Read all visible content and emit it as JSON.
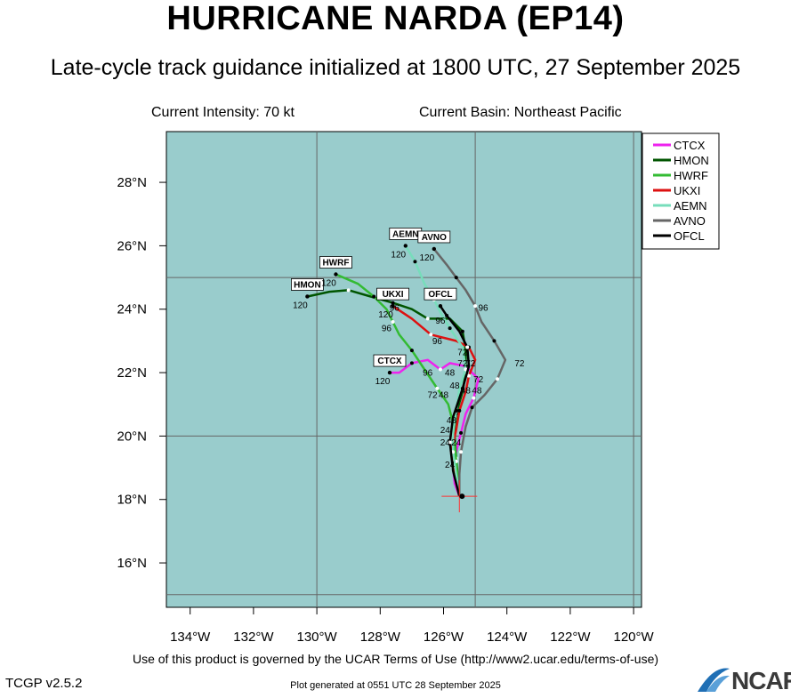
{
  "title": "HURRICANE NARDA (EP14)",
  "subtitle": "Late-cycle track guidance initialized at 1800 UTC, 27 September 2025",
  "current_intensity": "Current Intensity: 70 kt",
  "current_basin": "Current Basin: Northeast Pacific",
  "footer_terms": "Use of this product is governed by the UCAR Terms of Use (http://www2.ucar.edu/terms-of-use)",
  "footer_generated": "Plot generated at 0551 UTC   28 September 2025",
  "version": "TCGP v2.5.2",
  "logo_text": "NCAR",
  "colors": {
    "ocean": "#99cccc",
    "grid": "#666666",
    "storm_marker": "#ff3333"
  },
  "chart_data": {
    "type": "line",
    "lon_ticks": [
      "134°W",
      "132°W",
      "130°W",
      "128°W",
      "126°W",
      "124°W",
      "122°W",
      "120°W"
    ],
    "lat_ticks": [
      "16°N",
      "18°N",
      "20°N",
      "22°N",
      "24°N",
      "26°N",
      "28°N"
    ],
    "lon_range": [
      -134.75,
      -119.75
    ],
    "lat_range": [
      14.6,
      29.6
    ],
    "storm_position": [
      -125.5,
      18.1
    ],
    "legend_placement": "top-right",
    "series": [
      {
        "name": "CTCX",
        "color": "#ee22ee",
        "width": 2.5,
        "end_label": "CTCX",
        "end_number": "120",
        "points": [
          [
            -125.5,
            18.1
          ],
          [
            -125.65,
            18.5
          ],
          [
            -125.7,
            19.0
          ],
          [
            -125.6,
            19.5
          ],
          [
            -125.45,
            20.1
          ],
          [
            -125.3,
            20.7
          ],
          [
            -125.05,
            21.2
          ],
          [
            -124.9,
            21.8
          ],
          [
            -125.3,
            22.2
          ],
          [
            -125.8,
            22.3
          ],
          [
            -126.1,
            22.1
          ],
          [
            -126.5,
            22.4
          ],
          [
            -127.0,
            22.3
          ],
          [
            -127.4,
            22.0
          ],
          [
            -127.7,
            22.0
          ]
        ],
        "labels": [
          {
            "t": "96",
            "lon": -126.5,
            "lat": 21.9
          },
          {
            "t": "72",
            "lon": -124.9,
            "lat": 21.7
          }
        ]
      },
      {
        "name": "HMON",
        "color": "#005500",
        "width": 2.5,
        "end_label": "HMON",
        "end_number": "120",
        "points": [
          [
            -125.5,
            18.1
          ],
          [
            -125.55,
            18.7
          ],
          [
            -125.6,
            19.3
          ],
          [
            -125.65,
            20.0
          ],
          [
            -125.6,
            20.7
          ],
          [
            -125.4,
            21.4
          ],
          [
            -125.3,
            22.0
          ],
          [
            -125.3,
            22.7
          ],
          [
            -125.4,
            23.3
          ],
          [
            -125.8,
            23.7
          ],
          [
            -126.5,
            23.7
          ],
          [
            -127.0,
            24.0
          ],
          [
            -127.6,
            24.2
          ],
          [
            -128.3,
            24.4
          ],
          [
            -129.0,
            24.6
          ],
          [
            -129.6,
            24.55
          ],
          [
            -130.3,
            24.4
          ]
        ],
        "labels": []
      },
      {
        "name": "HWRF",
        "color": "#33bb33",
        "width": 2.5,
        "end_label": "HWRF",
        "end_number": "120",
        "points": [
          [
            -125.5,
            18.1
          ],
          [
            -125.55,
            18.6
          ],
          [
            -125.6,
            19.2
          ],
          [
            -125.65,
            19.8
          ],
          [
            -125.7,
            20.4
          ],
          [
            -125.85,
            21.0
          ],
          [
            -126.2,
            21.5
          ],
          [
            -126.6,
            22.1
          ],
          [
            -127.0,
            22.7
          ],
          [
            -127.4,
            23.2
          ],
          [
            -127.6,
            23.6
          ],
          [
            -127.8,
            24.0
          ],
          [
            -128.2,
            24.4
          ],
          [
            -128.7,
            24.8
          ],
          [
            -129.4,
            25.1
          ]
        ],
        "labels": [
          {
            "t": "72",
            "lon": -126.35,
            "lat": 21.2
          },
          {
            "t": "96",
            "lon": -127.8,
            "lat": 23.3
          }
        ]
      },
      {
        "name": "UKXI",
        "color": "#dd1111",
        "width": 2.5,
        "end_label": "UKXI",
        "end_number": "120",
        "points": [
          [
            -125.5,
            18.1
          ],
          [
            -125.65,
            18.8
          ],
          [
            -125.75,
            19.5
          ],
          [
            -125.6,
            20.2
          ],
          [
            -125.5,
            20.8
          ],
          [
            -125.3,
            21.4
          ],
          [
            -125.2,
            21.9
          ],
          [
            -125.0,
            22.4
          ],
          [
            -125.2,
            22.8
          ],
          [
            -125.6,
            23.0
          ],
          [
            -126.4,
            23.2
          ],
          [
            -127.0,
            23.7
          ],
          [
            -127.6,
            24.1
          ]
        ],
        "labels": [
          {
            "t": "96",
            "lon": -127.55,
            "lat": 23.95
          }
        ]
      },
      {
        "name": "AEMN",
        "color": "#77ddbb",
        "width": 2.5,
        "end_label": "AEMN",
        "end_number": "120",
        "points": [
          [
            -125.5,
            18.1
          ],
          [
            -125.6,
            18.8
          ],
          [
            -125.7,
            19.5
          ],
          [
            -125.7,
            20.1
          ],
          [
            -125.6,
            20.8
          ],
          [
            -125.5,
            21.5
          ],
          [
            -125.3,
            22.1
          ],
          [
            -125.4,
            22.8
          ],
          [
            -125.8,
            23.4
          ],
          [
            -126.1,
            23.9
          ],
          [
            -126.3,
            24.3
          ],
          [
            -126.6,
            24.8
          ],
          [
            -126.9,
            25.5
          ],
          [
            -127.2,
            26.0
          ]
        ],
        "labels": [
          {
            "t": "96",
            "lon": -126.1,
            "lat": 23.55
          }
        ]
      },
      {
        "name": "AVNO",
        "color": "#666666",
        "width": 2.5,
        "end_label": "AVNO",
        "end_number": "120",
        "points": [
          [
            -125.5,
            18.1
          ],
          [
            -125.5,
            18.8
          ],
          [
            -125.45,
            19.5
          ],
          [
            -125.3,
            20.3
          ],
          [
            -125.1,
            20.9
          ],
          [
            -124.7,
            21.3
          ],
          [
            -124.3,
            21.8
          ],
          [
            -124.05,
            22.4
          ],
          [
            -124.4,
            23.0
          ],
          [
            -124.8,
            23.6
          ],
          [
            -125.0,
            24.1
          ],
          [
            -125.3,
            24.6
          ],
          [
            -125.6,
            25.0
          ],
          [
            -125.9,
            25.4
          ],
          [
            -126.3,
            25.9
          ]
        ],
        "labels": [
          {
            "t": "96",
            "lon": -124.75,
            "lat": 23.95
          },
          {
            "t": "72",
            "lon": -123.6,
            "lat": 22.2
          }
        ]
      },
      {
        "name": "OFCL",
        "color": "#000000",
        "width": 2.5,
        "end_label": "OFCL",
        "end_number": "",
        "points": [
          [
            -125.5,
            18.1
          ],
          [
            -125.7,
            18.9
          ],
          [
            -125.8,
            19.8
          ],
          [
            -125.7,
            20.6
          ],
          [
            -125.4,
            21.5
          ],
          [
            -125.2,
            22.2
          ],
          [
            -125.25,
            22.8
          ],
          [
            -125.5,
            23.3
          ],
          [
            -125.9,
            23.8
          ],
          [
            -126.1,
            24.1
          ]
        ],
        "labels": [
          {
            "t": "96",
            "lon": -126.2,
            "lat": 22.9
          },
          {
            "t": "72",
            "lon": -125.4,
            "lat": 22.55
          }
        ]
      }
    ],
    "extra_labels": [
      {
        "t": "72",
        "lon": -125.4,
        "lat": 22.2
      },
      {
        "t": "72",
        "lon": -125.15,
        "lat": 22.2
      },
      {
        "t": "48",
        "lon": -125.8,
        "lat": 21.9
      },
      {
        "t": "48",
        "lon": -125.65,
        "lat": 21.5
      },
      {
        "t": "48",
        "lon": -125.3,
        "lat": 21.35
      },
      {
        "t": "48",
        "lon": -124.95,
        "lat": 21.35
      },
      {
        "t": "48",
        "lon": -126.0,
        "lat": 21.2
      },
      {
        "t": "48",
        "lon": -125.75,
        "lat": 20.4
      },
      {
        "t": "24",
        "lon": -125.95,
        "lat": 20.1
      },
      {
        "t": "24",
        "lon": -125.95,
        "lat": 19.7
      },
      {
        "t": "24",
        "lon": -125.6,
        "lat": 19.7
      },
      {
        "t": "24",
        "lon": -125.8,
        "lat": 19.0
      }
    ]
  }
}
